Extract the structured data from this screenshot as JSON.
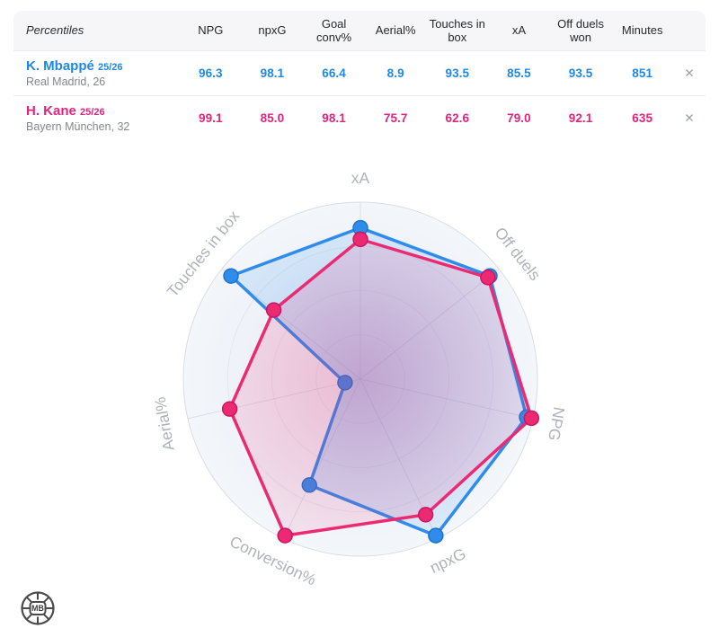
{
  "table": {
    "header": {
      "first_label": "Percentiles",
      "stats": [
        "NPG",
        "npxG",
        "Goal conv%",
        "Aerial%",
        "Touches in box",
        "xA",
        "Off duels won",
        "Minutes"
      ]
    },
    "rows": [
      {
        "name": "K. Mbappé",
        "season": "25/26",
        "subtitle": "Real Madrid, 26",
        "color": "#1E88E5",
        "values": [
          "96.3",
          "98.1",
          "66.4",
          "8.9",
          "93.5",
          "85.5",
          "93.5",
          "851"
        ],
        "remove_label": "✕"
      },
      {
        "name": "H. Kane",
        "season": "25/26",
        "subtitle": "Bayern München, 32",
        "color": "#E2247F",
        "values": [
          "99.1",
          "85.0",
          "98.1",
          "75.7",
          "62.6",
          "79.0",
          "92.1",
          "635"
        ],
        "remove_label": "✕"
      }
    ]
  },
  "chart_data": {
    "type": "radar",
    "axes": [
      "xA",
      "Off duels",
      "NPG",
      "npxG",
      "Conversion%",
      "Aerial%",
      "Touches in box"
    ],
    "axis_label_rotations_deg": [
      0,
      51.4,
      100,
      -25.7,
      25.7,
      -100,
      -51.4
    ],
    "scale_min": 0,
    "scale_max": 100,
    "grid_rings": [
      0.25,
      0.5,
      0.75
    ],
    "axis_label_color": "#AEB2BA",
    "grid_color": "#D5DAE1",
    "outer_ring_color": "#D9DEE4",
    "bg_colors": [
      "#E9EDF4",
      "#EFF3F9",
      "#F3F7FB"
    ],
    "series": [
      {
        "name": "K. Mbappé 25/26",
        "color": "#2F8CEB",
        "dot_stroke": "#1B72C8",
        "fill_center": "rgba(47,140,235,0.30)",
        "fill_edge": "rgba(47,140,235,0.11)",
        "values": [
          85.5,
          93.5,
          96.3,
          98.1,
          66.4,
          8.9,
          93.5
        ]
      },
      {
        "name": "H. Kane 25/26",
        "color": "#EC2A72",
        "dot_stroke": "#C81563",
        "fill_center": "rgba(236,42,114,0.26)",
        "fill_edge": "rgba(236,42,114,0.09)",
        "values": [
          79.0,
          92.1,
          99.1,
          85.0,
          98.1,
          75.7,
          62.6
        ]
      }
    ]
  },
  "logo": {
    "text": "MB"
  }
}
